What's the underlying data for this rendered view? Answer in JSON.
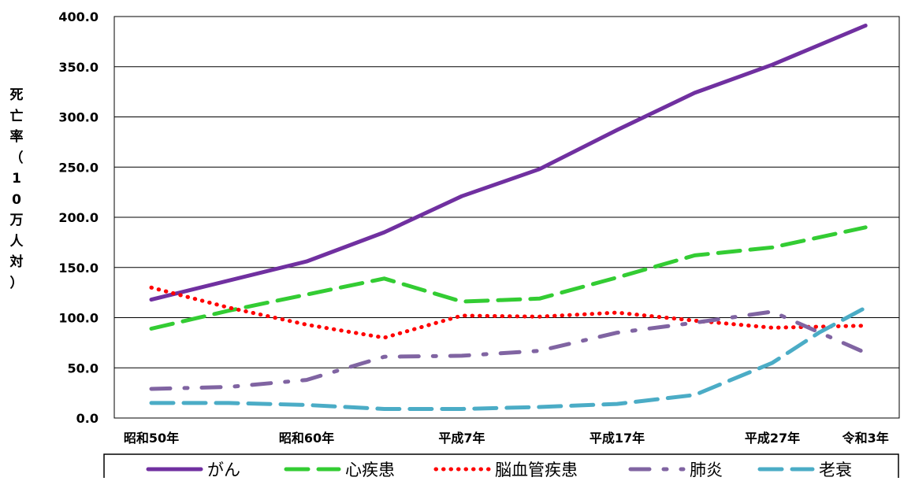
{
  "chart_data": {
    "type": "line",
    "ylabel": "死亡率（10万人対）",
    "xlabel": "",
    "ylim": [
      0,
      400
    ],
    "yticks": [
      "0.0",
      "50.0",
      "100.0",
      "150.0",
      "200.0",
      "250.0",
      "300.0",
      "350.0",
      "400.0"
    ],
    "grid": true,
    "legend_position": "bottom",
    "x_tick_labels": [
      {
        "index": 0,
        "label": "昭和50年"
      },
      {
        "index": 5,
        "label": "昭和60年"
      },
      {
        "index": 10,
        "label": "平成7年"
      },
      {
        "index": 15,
        "label": "平成17年"
      },
      {
        "index": 20,
        "label": "平成27年"
      },
      {
        "index": 23,
        "label": "令和3年"
      }
    ],
    "series": [
      {
        "name": "がん",
        "color": "#7030A0",
        "style": "solid",
        "x": [
          0,
          5,
          7.5,
          10,
          12.5,
          15,
          17.5,
          20,
          23
        ],
        "values": [
          118,
          156,
          185,
          221,
          248,
          287,
          324,
          352,
          391
        ]
      },
      {
        "name": "心疾患",
        "color": "#33CC33",
        "style": "dash",
        "x": [
          0,
          2.5,
          5,
          7.5,
          10,
          12.5,
          15,
          17.5,
          20,
          23
        ],
        "values": [
          89,
          107,
          123,
          139,
          116,
          119,
          140,
          162,
          170,
          190
        ]
      },
      {
        "name": "脳血管疾患",
        "color": "#FF0000",
        "style": "dot",
        "x": [
          0,
          2.5,
          5,
          7.5,
          10,
          12.5,
          15,
          17.5,
          20,
          23
        ],
        "values": [
          130,
          110,
          93,
          80,
          102,
          101,
          105,
          97,
          90,
          92
        ]
      },
      {
        "name": "肺炎",
        "color": "#8064A2",
        "style": "dashdot",
        "x": [
          0,
          2.5,
          5,
          7.5,
          10,
          12.5,
          15,
          17.5,
          20,
          23
        ],
        "values": [
          29,
          31,
          38,
          61,
          62,
          67,
          85,
          95,
          106,
          65
        ]
      },
      {
        "name": "老衰",
        "color": "#4BACC6",
        "style": "dash",
        "x": [
          0,
          2.5,
          5,
          7.5,
          10,
          12.5,
          15,
          17.5,
          20,
          21.5,
          23
        ],
        "values": [
          15,
          15,
          13,
          9,
          9,
          11,
          14,
          23,
          55,
          85,
          110
        ]
      }
    ]
  }
}
